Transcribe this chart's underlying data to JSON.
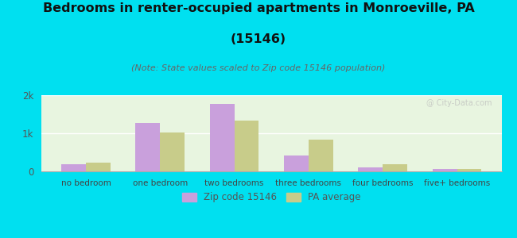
{
  "categories": [
    "no bedroom",
    "one bedroom",
    "two bedrooms",
    "three bedrooms",
    "four bedrooms",
    "five+ bedrooms"
  ],
  "zip_values": [
    190,
    1280,
    1780,
    420,
    110,
    70
  ],
  "pa_values": [
    225,
    1020,
    1330,
    840,
    190,
    70
  ],
  "zip_color": "#c9a0dc",
  "pa_color": "#c8cc8a",
  "title_line1": "Bedrooms in renter-occupied apartments in Monroeville, PA",
  "title_line2": "(15146)",
  "subtitle": "(Note: State values scaled to Zip code 15146 population)",
  "background_outer": "#00e0f0",
  "background_inner": "#e8f5e0",
  "ylim": [
    0,
    2000
  ],
  "yticks": [
    0,
    1000,
    2000
  ],
  "ytick_labels": [
    "0",
    "1k",
    "2k"
  ],
  "legend_zip": "Zip code 15146",
  "legend_pa": "PA average",
  "title_fontsize": 11.5,
  "subtitle_fontsize": 8,
  "bar_width": 0.33
}
